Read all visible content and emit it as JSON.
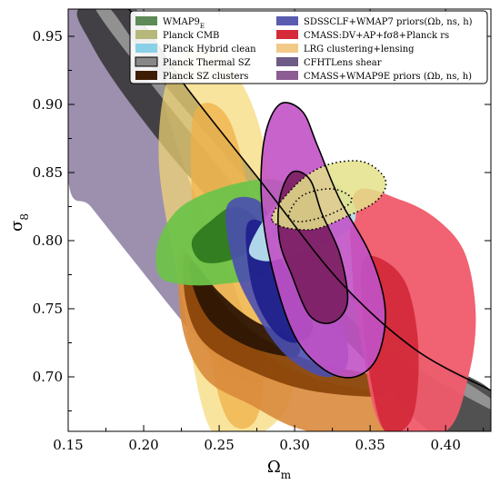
{
  "chart_data": {
    "type": "contour",
    "xlabel": "Ω",
    "xlabel_sub": "m",
    "ylabel": "σ",
    "ylabel_sub": "8",
    "xlim": [
      0.15,
      0.43
    ],
    "ylim": [
      0.66,
      0.97
    ],
    "xticks": [
      0.15,
      0.2,
      0.25,
      0.3,
      0.35,
      0.4
    ],
    "xtick_labels": [
      "0.15",
      "0.20",
      "0.25",
      "0.30",
      "0.35",
      "0.40"
    ],
    "yticks": [
      0.7,
      0.75,
      0.8,
      0.85,
      0.9,
      0.95
    ],
    "ytick_labels": [
      "0.70",
      "0.75",
      "0.80",
      "0.85",
      "0.90",
      "0.95"
    ],
    "legend_position": "top-right",
    "legend": [
      {
        "label": "WMAP9",
        "sub": "E",
        "color": "#5d8a56"
      },
      {
        "label": "Planck CMB",
        "color": "#b5b87a"
      },
      {
        "label": "Planck Hybrid clean",
        "color": "#8ad0e6"
      },
      {
        "label": "Planck Thermal SZ",
        "color": "#888888"
      },
      {
        "label": "Planck SZ clusters",
        "color": "#3d1e05"
      },
      {
        "label": "SDSSCLF+WMAP7 priors(Ωb, ns, h)",
        "color": "#5a5cb0"
      },
      {
        "label": "CMASS:DV+AP+fσ8+Planck rs",
        "color": "#d42a3a"
      },
      {
        "label": "LRG clustering+lensing",
        "color": "#f3c98a"
      },
      {
        "label": "CFHTLens shear",
        "color": "#6e5b86"
      },
      {
        "label": "CMASS+WMAP9E priors (Ωb, ns, h)",
        "color": "#8c5c92"
      }
    ],
    "contours": [
      {
        "name": "CFHTLens shear",
        "color": "#5a4678",
        "opacity": 0.6,
        "points": [
          [
            0.15,
            0.97
          ],
          [
            0.195,
            0.97
          ],
          [
            0.215,
            0.895
          ],
          [
            0.23,
            0.845
          ],
          [
            0.255,
            0.78
          ],
          [
            0.27,
            0.735
          ],
          [
            0.282,
            0.7
          ],
          [
            0.26,
            0.7
          ],
          [
            0.23,
            0.735
          ],
          [
            0.19,
            0.79
          ],
          [
            0.165,
            0.825
          ],
          [
            0.15,
            0.845
          ]
        ]
      },
      {
        "name": "Planck Thermal SZ outer",
        "color": "#333333",
        "opacity": 0.85,
        "points": [
          [
            0.157,
            0.97
          ],
          [
            0.19,
            0.97
          ],
          [
            0.23,
            0.91
          ],
          [
            0.28,
            0.84
          ],
          [
            0.33,
            0.77
          ],
          [
            0.38,
            0.72
          ],
          [
            0.43,
            0.69
          ],
          [
            0.43,
            0.66
          ],
          [
            0.39,
            0.66
          ],
          [
            0.34,
            0.72
          ],
          [
            0.3,
            0.76
          ],
          [
            0.26,
            0.81
          ],
          [
            0.22,
            0.86
          ],
          [
            0.185,
            0.91
          ],
          [
            0.165,
            0.945
          ]
        ]
      },
      {
        "name": "Planck Thermal SZ inner",
        "color": "#9a9a9a",
        "opacity": 0.9,
        "points": [
          [
            0.168,
            0.97
          ],
          [
            0.178,
            0.97
          ],
          [
            0.21,
            0.92
          ],
          [
            0.26,
            0.855
          ],
          [
            0.31,
            0.79
          ],
          [
            0.36,
            0.735
          ],
          [
            0.43,
            0.684
          ],
          [
            0.43,
            0.676
          ],
          [
            0.355,
            0.725
          ],
          [
            0.305,
            0.782
          ],
          [
            0.255,
            0.847
          ],
          [
            0.205,
            0.915
          ]
        ]
      },
      {
        "name": "LRG clustering+lensing outer",
        "color": "#f5d873",
        "opacity": 0.7,
        "points": [
          [
            0.22,
            0.93
          ],
          [
            0.25,
            0.935
          ],
          [
            0.275,
            0.89
          ],
          [
            0.29,
            0.8
          ],
          [
            0.3,
            0.7
          ],
          [
            0.28,
            0.66
          ],
          [
            0.245,
            0.66
          ],
          [
            0.225,
            0.76
          ],
          [
            0.21,
            0.86
          ]
        ]
      },
      {
        "name": "LRG clustering+lensing inner",
        "color": "#f0b048",
        "opacity": 0.75,
        "points": [
          [
            0.234,
            0.895
          ],
          [
            0.256,
            0.89
          ],
          [
            0.272,
            0.82
          ],
          [
            0.28,
            0.73
          ],
          [
            0.275,
            0.67
          ],
          [
            0.255,
            0.67
          ],
          [
            0.24,
            0.74
          ],
          [
            0.232,
            0.83
          ]
        ]
      },
      {
        "name": "Planck SZ clusters outer",
        "color": "#d9893c",
        "opacity": 0.9,
        "points": [
          [
            0.225,
            0.795
          ],
          [
            0.245,
            0.76
          ],
          [
            0.27,
            0.725
          ],
          [
            0.31,
            0.7
          ],
          [
            0.36,
            0.685
          ],
          [
            0.37,
            0.66
          ],
          [
            0.31,
            0.66
          ],
          [
            0.27,
            0.68
          ],
          [
            0.24,
            0.7
          ],
          [
            0.225,
            0.74
          ]
        ]
      },
      {
        "name": "Planck SZ clusters mid",
        "color": "#8a4408",
        "opacity": 0.95,
        "points": [
          [
            0.228,
            0.79
          ],
          [
            0.245,
            0.765
          ],
          [
            0.27,
            0.735
          ],
          [
            0.31,
            0.712
          ],
          [
            0.355,
            0.7
          ],
          [
            0.36,
            0.686
          ],
          [
            0.31,
            0.69
          ],
          [
            0.27,
            0.705
          ],
          [
            0.24,
            0.725
          ],
          [
            0.228,
            0.755
          ]
        ]
      },
      {
        "name": "Planck SZ clusters inner",
        "color": "#2e1604",
        "opacity": 0.95,
        "points": [
          [
            0.232,
            0.785
          ],
          [
            0.25,
            0.762
          ],
          [
            0.272,
            0.742
          ],
          [
            0.3,
            0.727
          ],
          [
            0.3,
            0.715
          ],
          [
            0.27,
            0.722
          ],
          [
            0.245,
            0.74
          ],
          [
            0.233,
            0.765
          ]
        ]
      },
      {
        "name": "CMASS:DV+AP+fσ8+Planck rs outer",
        "color": "#f05a6a",
        "opacity": 0.95,
        "points": [
          [
            0.34,
            0.835
          ],
          [
            0.37,
            0.83
          ],
          [
            0.395,
            0.815
          ],
          [
            0.413,
            0.79
          ],
          [
            0.42,
            0.745
          ],
          [
            0.415,
            0.7
          ],
          [
            0.4,
            0.66
          ],
          [
            0.36,
            0.66
          ],
          [
            0.345,
            0.72
          ],
          [
            0.338,
            0.78
          ]
        ]
      },
      {
        "name": "CMASS:DV+AP+fσ8+Planck rs inner",
        "color": "#d32a3a",
        "opacity": 0.95,
        "points": [
          [
            0.345,
            0.785
          ],
          [
            0.36,
            0.785
          ],
          [
            0.375,
            0.765
          ],
          [
            0.382,
            0.72
          ],
          [
            0.378,
            0.67
          ],
          [
            0.36,
            0.66
          ],
          [
            0.35,
            0.7
          ],
          [
            0.345,
            0.745
          ]
        ]
      },
      {
        "name": "WMAP9E outer",
        "color": "#6fc34a",
        "opacity": 0.95,
        "points": [
          [
            0.21,
            0.8
          ],
          [
            0.225,
            0.825
          ],
          [
            0.255,
            0.84
          ],
          [
            0.285,
            0.845
          ],
          [
            0.3,
            0.835
          ],
          [
            0.295,
            0.8
          ],
          [
            0.28,
            0.775
          ],
          [
            0.25,
            0.768
          ],
          [
            0.225,
            0.768
          ],
          [
            0.21,
            0.775
          ]
        ]
      },
      {
        "name": "WMAP9E inner",
        "color": "#2f7a1e",
        "opacity": 0.95,
        "points": [
          [
            0.232,
            0.8
          ],
          [
            0.245,
            0.815
          ],
          [
            0.26,
            0.825
          ],
          [
            0.275,
            0.815
          ],
          [
            0.272,
            0.795
          ],
          [
            0.255,
            0.785
          ],
          [
            0.238,
            0.785
          ]
        ]
      },
      {
        "name": "SDSSCLF+WMAP7 priors outer",
        "color": "#4a4fb0",
        "opacity": 0.9,
        "points": [
          [
            0.255,
            0.825
          ],
          [
            0.275,
            0.83
          ],
          [
            0.29,
            0.805
          ],
          [
            0.31,
            0.775
          ],
          [
            0.33,
            0.745
          ],
          [
            0.335,
            0.71
          ],
          [
            0.32,
            0.7
          ],
          [
            0.295,
            0.715
          ],
          [
            0.275,
            0.745
          ],
          [
            0.26,
            0.78
          ]
        ]
      },
      {
        "name": "SDSSCLF+WMAP7 priors inner",
        "color": "#1e1e8c",
        "opacity": 0.9,
        "points": [
          [
            0.268,
            0.81
          ],
          [
            0.28,
            0.812
          ],
          [
            0.292,
            0.785
          ],
          [
            0.305,
            0.76
          ],
          [
            0.312,
            0.735
          ],
          [
            0.3,
            0.725
          ],
          [
            0.285,
            0.735
          ],
          [
            0.272,
            0.765
          ]
        ]
      },
      {
        "name": "Planck Hybrid clean outer",
        "color": "#b7e2ee",
        "opacity": 0.95,
        "points": [
          [
            0.27,
            0.795
          ],
          [
            0.29,
            0.83
          ],
          [
            0.315,
            0.845
          ],
          [
            0.335,
            0.835
          ],
          [
            0.34,
            0.815
          ],
          [
            0.325,
            0.8
          ],
          [
            0.3,
            0.79
          ],
          [
            0.28,
            0.785
          ]
        ]
      },
      {
        "name": "Planck Hybrid clean inner",
        "color": "#7fc7db",
        "opacity": 0.95,
        "points": [
          [
            0.285,
            0.805
          ],
          [
            0.3,
            0.826
          ],
          [
            0.32,
            0.832
          ],
          [
            0.328,
            0.818
          ],
          [
            0.315,
            0.805
          ],
          [
            0.298,
            0.798
          ]
        ]
      },
      {
        "name": "CMASS+WMAP9E outer",
        "color": "#c252c6",
        "opacity": 0.9,
        "points": [
          [
            0.28,
            0.875
          ],
          [
            0.29,
            0.9
          ],
          [
            0.305,
            0.895
          ],
          [
            0.315,
            0.87
          ],
          [
            0.33,
            0.83
          ],
          [
            0.35,
            0.79
          ],
          [
            0.36,
            0.75
          ],
          [
            0.355,
            0.715
          ],
          [
            0.34,
            0.7
          ],
          [
            0.32,
            0.705
          ],
          [
            0.3,
            0.73
          ],
          [
            0.285,
            0.78
          ],
          [
            0.278,
            0.83
          ]
        ]
      },
      {
        "name": "CMASS+WMAP9E inner",
        "color": "#7a1e60",
        "opacity": 0.9,
        "points": [
          [
            0.29,
            0.83
          ],
          [
            0.298,
            0.85
          ],
          [
            0.31,
            0.845
          ],
          [
            0.318,
            0.82
          ],
          [
            0.33,
            0.79
          ],
          [
            0.335,
            0.755
          ],
          [
            0.325,
            0.74
          ],
          [
            0.31,
            0.745
          ],
          [
            0.298,
            0.775
          ],
          [
            0.29,
            0.8
          ]
        ]
      },
      {
        "name": "Planck CMB outer",
        "color": "#e4e28a",
        "opacity": 0.85,
        "points": [
          [
            0.285,
            0.815
          ],
          [
            0.3,
            0.84
          ],
          [
            0.32,
            0.855
          ],
          [
            0.345,
            0.858
          ],
          [
            0.36,
            0.845
          ],
          [
            0.355,
            0.83
          ],
          [
            0.335,
            0.818
          ],
          [
            0.31,
            0.808
          ]
        ]
      }
    ],
    "dotted_contours": [
      {
        "name": "Planck CMB dotted outer",
        "points": [
          [
            0.285,
            0.815
          ],
          [
            0.3,
            0.84
          ],
          [
            0.32,
            0.855
          ],
          [
            0.345,
            0.858
          ],
          [
            0.36,
            0.845
          ],
          [
            0.355,
            0.83
          ],
          [
            0.335,
            0.818
          ],
          [
            0.31,
            0.808
          ]
        ]
      },
      {
        "name": "Planck CMB dotted inner",
        "points": [
          [
            0.296,
            0.818
          ],
          [
            0.305,
            0.833
          ],
          [
            0.325,
            0.838
          ],
          [
            0.338,
            0.83
          ],
          [
            0.325,
            0.82
          ],
          [
            0.305,
            0.814
          ]
        ]
      }
    ],
    "outlines": [
      {
        "name": "CMASS+WMAP9E outline outer",
        "points": [
          [
            0.28,
            0.875
          ],
          [
            0.29,
            0.9
          ],
          [
            0.305,
            0.895
          ],
          [
            0.315,
            0.87
          ],
          [
            0.33,
            0.83
          ],
          [
            0.35,
            0.79
          ],
          [
            0.36,
            0.75
          ],
          [
            0.355,
            0.715
          ],
          [
            0.34,
            0.7
          ],
          [
            0.32,
            0.705
          ],
          [
            0.3,
            0.73
          ],
          [
            0.285,
            0.78
          ],
          [
            0.278,
            0.83
          ]
        ]
      },
      {
        "name": "CMASS+WMAP9E outline inner",
        "points": [
          [
            0.29,
            0.83
          ],
          [
            0.298,
            0.85
          ],
          [
            0.31,
            0.845
          ],
          [
            0.318,
            0.82
          ],
          [
            0.33,
            0.79
          ],
          [
            0.335,
            0.755
          ],
          [
            0.325,
            0.74
          ],
          [
            0.31,
            0.745
          ],
          [
            0.298,
            0.775
          ],
          [
            0.29,
            0.8
          ]
        ]
      },
      {
        "name": "Planck Thermal SZ outline",
        "points": [
          [
            0.157,
            0.97
          ],
          [
            0.19,
            0.97
          ],
          [
            0.23,
            0.91
          ],
          [
            0.28,
            0.84
          ],
          [
            0.33,
            0.77
          ],
          [
            0.38,
            0.72
          ],
          [
            0.43,
            0.69
          ]
        ]
      }
    ]
  }
}
